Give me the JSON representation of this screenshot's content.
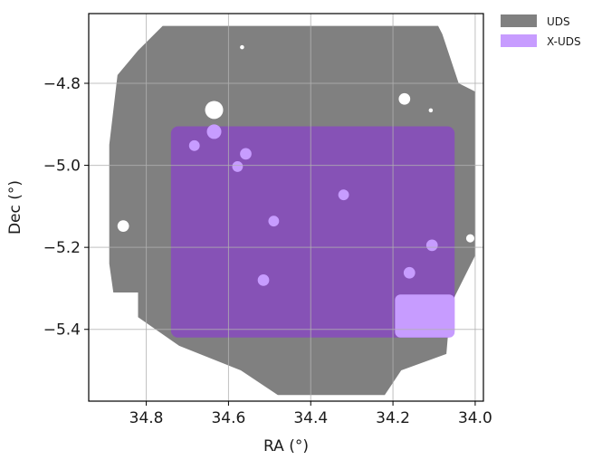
{
  "chart_data": {
    "type": "map",
    "xlabel": "RA (°)",
    "ylabel": "Dec (°)",
    "x_inverted": true,
    "xlim": [
      34.94,
      33.98
    ],
    "ylim": [
      -5.575,
      -4.63
    ],
    "x_ticks": [
      34.8,
      34.6,
      34.4,
      34.2,
      34.0
    ],
    "x_tick_labels": [
      "34.8",
      "34.6",
      "34.4",
      "34.2",
      "34.0"
    ],
    "y_ticks": [
      -4.8,
      -5.0,
      -5.2,
      -5.4
    ],
    "y_tick_labels": [
      "−4.8",
      "−5.0",
      "−5.2",
      "−5.4"
    ],
    "grid": true,
    "legend_position": "outside-top-right",
    "series": [
      {
        "name": "UDS",
        "color": "#808080",
        "footprint": [
          [
            34.76,
            -4.66
          ],
          [
            34.09,
            -4.66
          ],
          [
            34.08,
            -4.68
          ],
          [
            34.04,
            -4.8
          ],
          [
            34.0,
            -4.82
          ],
          [
            34.0,
            -5.22
          ],
          [
            34.06,
            -5.34
          ],
          [
            34.07,
            -5.46
          ],
          [
            34.18,
            -5.5
          ],
          [
            34.22,
            -5.56
          ],
          [
            34.48,
            -5.56
          ],
          [
            34.57,
            -5.5
          ],
          [
            34.72,
            -5.44
          ],
          [
            34.82,
            -5.37
          ],
          [
            34.82,
            -5.31
          ],
          [
            34.88,
            -5.31
          ],
          [
            34.89,
            -5.24
          ],
          [
            34.89,
            -4.95
          ],
          [
            34.87,
            -4.78
          ],
          [
            34.82,
            -4.72
          ]
        ]
      },
      {
        "name": "X-UDS",
        "color": "#c79cff",
        "ra_range": [
          34.05,
          34.74
        ],
        "dec_range": [
          -5.42,
          -4.905
        ]
      }
    ],
    "masked_holes": [
      {
        "ra": 34.635,
        "dec": -4.865,
        "r": 0.022
      },
      {
        "ra": 34.172,
        "dec": -4.838,
        "r": 0.014
      },
      {
        "ra": 34.856,
        "dec": -5.148,
        "r": 0.014
      },
      {
        "ra": 34.012,
        "dec": -5.178,
        "r": 0.01
      },
      {
        "ra": 34.567,
        "dec": -4.712,
        "r": 0.005
      },
      {
        "ra": 34.108,
        "dec": -4.866,
        "r": 0.005
      }
    ],
    "overlap_spots": [
      {
        "ra": 34.683,
        "dec": -4.952,
        "r": 0.013
      },
      {
        "ra": 34.558,
        "dec": -4.972,
        "r": 0.014
      },
      {
        "ra": 34.578,
        "dec": -5.003,
        "r": 0.013
      },
      {
        "ra": 34.32,
        "dec": -5.072,
        "r": 0.013
      },
      {
        "ra": 34.49,
        "dec": -5.136,
        "r": 0.013
      },
      {
        "ra": 34.105,
        "dec": -5.195,
        "r": 0.014
      },
      {
        "ra": 34.16,
        "dec": -5.262,
        "r": 0.014
      },
      {
        "ra": 34.515,
        "dec": -5.28,
        "r": 0.014
      }
    ],
    "lighter_patch": {
      "ra_range": [
        34.05,
        34.195
      ],
      "dec_range": [
        -5.42,
        -5.315
      ]
    }
  }
}
